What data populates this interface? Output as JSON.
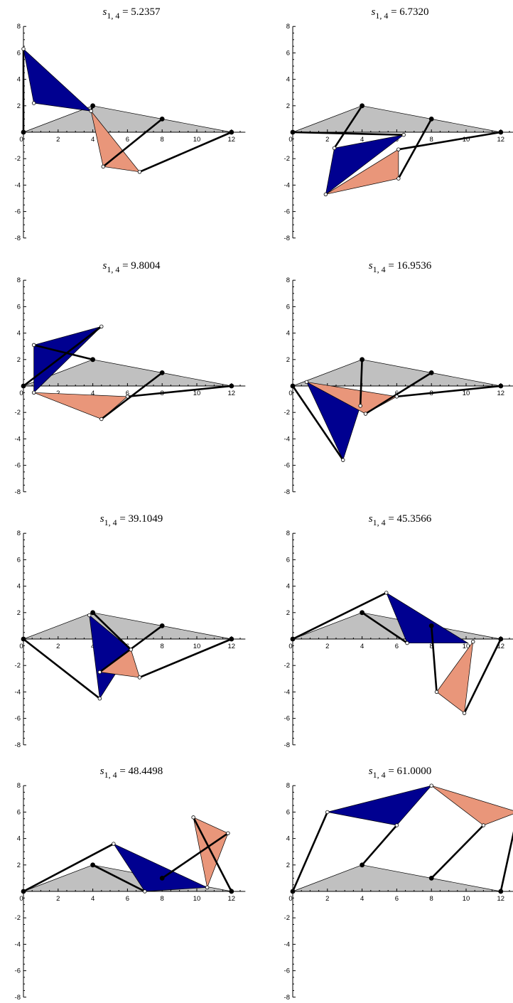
{
  "figure": {
    "title_symbol": "s",
    "title_subscript": "1, 4",
    "x_axis_ticks": [
      "0",
      "2",
      "4",
      "6",
      "8",
      "10",
      "12"
    ],
    "y_axis_ticks": [
      "8",
      "6",
      "4",
      "2",
      "-2",
      "-4",
      "-6",
      "-8"
    ],
    "xlim": [
      0,
      12
    ],
    "ylim": [
      -8,
      8
    ],
    "colors": {
      "ground": "#c0c0c0",
      "blue_triangle": "#000090",
      "salmon_triangle": "#e9967a",
      "bars": "#000000"
    },
    "panels": [
      {
        "value": "5.2357",
        "ground": [
          [
            0,
            0
          ],
          [
            4,
            2
          ],
          [
            12,
            0
          ]
        ],
        "blue": [
          [
            0,
            6.3
          ],
          [
            0.6,
            2.2
          ],
          [
            3.9,
            1.6
          ]
        ],
        "salmon": [
          [
            3.9,
            1.6
          ],
          [
            4.6,
            -2.6
          ],
          [
            6.7,
            -3.0
          ]
        ],
        "bars": [
          [
            [
              0,
              0
            ],
            [
              0,
              6.3
            ]
          ],
          [
            [
              4,
              2
            ],
            [
              3.9,
              1.6
            ]
          ],
          [
            [
              8,
              1
            ],
            [
              4.6,
              -2.6
            ]
          ],
          [
            [
              12,
              0
            ],
            [
              6.7,
              -3.0
            ]
          ]
        ],
        "pivots": [
          [
            0,
            0
          ],
          [
            4,
            2
          ],
          [
            8,
            1
          ],
          [
            12,
            0
          ]
        ],
        "joints": [
          [
            0,
            6.3
          ],
          [
            0.6,
            2.2
          ],
          [
            3.9,
            1.6
          ],
          [
            4.6,
            -2.6
          ],
          [
            6.7,
            -3.0
          ]
        ]
      },
      {
        "value": "6.7320",
        "ground": [
          [
            0,
            0
          ],
          [
            4,
            2
          ],
          [
            12,
            0
          ]
        ],
        "blue": [
          [
            2.4,
            -1.2
          ],
          [
            1.9,
            -4.7
          ],
          [
            6.4,
            -0.2
          ]
        ],
        "salmon": [
          [
            1.9,
            -4.7
          ],
          [
            6.1,
            -3.5
          ],
          [
            6.1,
            -1.3
          ]
        ],
        "bars": [
          [
            [
              0,
              0
            ],
            [
              6.4,
              -0.2
            ]
          ],
          [
            [
              4,
              2
            ],
            [
              2.4,
              -1.2
            ]
          ],
          [
            [
              8,
              1
            ],
            [
              6.1,
              -3.5
            ]
          ],
          [
            [
              12,
              0
            ],
            [
              6.1,
              -1.3
            ]
          ]
        ],
        "pivots": [
          [
            0,
            0
          ],
          [
            4,
            2
          ],
          [
            8,
            1
          ],
          [
            12,
            0
          ]
        ],
        "joints": [
          [
            2.4,
            -1.2
          ],
          [
            1.9,
            -4.7
          ],
          [
            6.4,
            -0.2
          ],
          [
            6.1,
            -3.5
          ],
          [
            6.1,
            -1.3
          ]
        ]
      },
      {
        "value": "9.8004",
        "ground": [
          [
            0,
            0
          ],
          [
            4,
            2
          ],
          [
            12,
            0
          ]
        ],
        "blue": [
          [
            0.6,
            3.1
          ],
          [
            0.6,
            -0.5
          ],
          [
            4.5,
            4.5
          ]
        ],
        "salmon": [
          [
            0.6,
            -0.5
          ],
          [
            4.5,
            -2.5
          ],
          [
            6.0,
            -0.8
          ]
        ],
        "bars": [
          [
            [
              0,
              0
            ],
            [
              4.5,
              4.5
            ]
          ],
          [
            [
              4,
              2
            ],
            [
              0.6,
              3.1
            ]
          ],
          [
            [
              8,
              1
            ],
            [
              4.5,
              -2.5
            ]
          ],
          [
            [
              12,
              0
            ],
            [
              6.0,
              -0.8
            ]
          ]
        ],
        "pivots": [
          [
            0,
            0
          ],
          [
            4,
            2
          ],
          [
            8,
            1
          ],
          [
            12,
            0
          ]
        ],
        "joints": [
          [
            0.6,
            3.1
          ],
          [
            0.6,
            -0.5
          ],
          [
            4.5,
            4.5
          ],
          [
            4.5,
            -2.5
          ],
          [
            6.0,
            -0.8
          ]
        ]
      },
      {
        "value": "16.9536",
        "ground": [
          [
            0,
            0
          ],
          [
            4,
            2
          ],
          [
            12,
            0
          ]
        ],
        "blue": [
          [
            0.8,
            0.3
          ],
          [
            2.9,
            -5.6
          ],
          [
            3.9,
            -1.5
          ]
        ],
        "salmon": [
          [
            0.8,
            0.3
          ],
          [
            4.2,
            -2.1
          ],
          [
            6.0,
            -0.8
          ]
        ],
        "bars": [
          [
            [
              0,
              0
            ],
            [
              2.9,
              -5.6
            ]
          ],
          [
            [
              4,
              2
            ],
            [
              3.9,
              -1.5
            ]
          ],
          [
            [
              8,
              1
            ],
            [
              4.2,
              -2.1
            ]
          ],
          [
            [
              12,
              0
            ],
            [
              6.0,
              -0.8
            ]
          ]
        ],
        "pivots": [
          [
            0,
            0
          ],
          [
            4,
            2
          ],
          [
            8,
            1
          ],
          [
            12,
            0
          ]
        ],
        "joints": [
          [
            0.8,
            0.3
          ],
          [
            2.9,
            -5.6
          ],
          [
            3.9,
            -1.5
          ],
          [
            4.2,
            -2.1
          ],
          [
            6.0,
            -0.8
          ]
        ]
      },
      {
        "value": "39.1049",
        "ground": [
          [
            0,
            0
          ],
          [
            4,
            2
          ],
          [
            12,
            0
          ]
        ],
        "blue": [
          [
            3.8,
            1.8
          ],
          [
            4.4,
            -4.5
          ],
          [
            6.2,
            -0.8
          ]
        ],
        "salmon": [
          [
            4.4,
            -2.5
          ],
          [
            6.7,
            -2.9
          ],
          [
            6.2,
            -0.8
          ]
        ],
        "bars": [
          [
            [
              0,
              0
            ],
            [
              4.4,
              -4.5
            ]
          ],
          [
            [
              4,
              2
            ],
            [
              6.2,
              -0.8
            ]
          ],
          [
            [
              8,
              1
            ],
            [
              4.4,
              -2.5
            ]
          ],
          [
            [
              12,
              0
            ],
            [
              6.7,
              -2.9
            ]
          ]
        ],
        "pivots": [
          [
            0,
            0
          ],
          [
            4,
            2
          ],
          [
            8,
            1
          ],
          [
            12,
            0
          ]
        ],
        "joints": [
          [
            3.8,
            1.8
          ],
          [
            4.4,
            -4.5
          ],
          [
            6.2,
            -0.8
          ],
          [
            4.4,
            -2.5
          ],
          [
            6.7,
            -2.9
          ]
        ]
      },
      {
        "value": "45.3566",
        "ground": [
          [
            0,
            0
          ],
          [
            4,
            2
          ],
          [
            12,
            0
          ]
        ],
        "blue": [
          [
            5.4,
            3.5
          ],
          [
            6.6,
            -0.3
          ],
          [
            10.1,
            -0.3
          ]
        ],
        "salmon": [
          [
            10.4,
            -0.2
          ],
          [
            8.3,
            -4.0
          ],
          [
            9.9,
            -5.6
          ]
        ],
        "bars": [
          [
            [
              0,
              0
            ],
            [
              5.4,
              3.5
            ]
          ],
          [
            [
              4,
              2
            ],
            [
              6.6,
              -0.3
            ]
          ],
          [
            [
              8,
              1
            ],
            [
              8.3,
              -4.0
            ]
          ],
          [
            [
              12,
              0
            ],
            [
              9.9,
              -5.6
            ]
          ]
        ],
        "pivots": [
          [
            0,
            0
          ],
          [
            4,
            2
          ],
          [
            8,
            1
          ],
          [
            12,
            0
          ]
        ],
        "joints": [
          [
            5.4,
            3.5
          ],
          [
            6.6,
            -0.3
          ],
          [
            10.4,
            -0.2
          ],
          [
            8.3,
            -4.0
          ],
          [
            9.9,
            -5.6
          ]
        ]
      },
      {
        "value": "48.4498",
        "ground": [
          [
            0,
            0
          ],
          [
            4,
            2
          ],
          [
            12,
            0
          ]
        ],
        "blue": [
          [
            5.2,
            3.6
          ],
          [
            7.0,
            0
          ],
          [
            10.6,
            0.3
          ]
        ],
        "salmon": [
          [
            9.8,
            5.6
          ],
          [
            11.8,
            4.4
          ],
          [
            10.6,
            0.3
          ]
        ],
        "bars": [
          [
            [
              0,
              0
            ],
            [
              5.2,
              3.6
            ]
          ],
          [
            [
              4,
              2
            ],
            [
              7.0,
              0
            ]
          ],
          [
            [
              8,
              1
            ],
            [
              11.8,
              4.4
            ]
          ],
          [
            [
              12,
              0
            ],
            [
              9.8,
              5.6
            ]
          ]
        ],
        "pivots": [
          [
            0,
            0
          ],
          [
            4,
            2
          ],
          [
            8,
            1
          ],
          [
            12,
            0
          ]
        ],
        "joints": [
          [
            5.2,
            3.6
          ],
          [
            7.0,
            0
          ],
          [
            10.6,
            0.3
          ],
          [
            9.8,
            5.6
          ],
          [
            11.8,
            4.4
          ]
        ]
      },
      {
        "value": "61.0000",
        "ground": [
          [
            0,
            0
          ],
          [
            4,
            2
          ],
          [
            12,
            0
          ]
        ],
        "blue": [
          [
            2,
            6
          ],
          [
            6,
            5
          ],
          [
            8,
            8
          ]
        ],
        "salmon": [
          [
            8,
            8
          ],
          [
            11,
            5
          ],
          [
            13,
            6
          ]
        ],
        "bars": [
          [
            [
              0,
              0
            ],
            [
              2,
              6
            ]
          ],
          [
            [
              4,
              2
            ],
            [
              6,
              5
            ]
          ],
          [
            [
              8,
              1
            ],
            [
              11,
              5
            ]
          ],
          [
            [
              12,
              0
            ],
            [
              13,
              6
            ]
          ]
        ],
        "pivots": [
          [
            0,
            0
          ],
          [
            4,
            2
          ],
          [
            8,
            1
          ],
          [
            12,
            0
          ]
        ],
        "joints": [
          [
            2,
            6
          ],
          [
            6,
            5
          ],
          [
            8,
            8
          ],
          [
            11,
            5
          ],
          [
            13,
            6
          ]
        ]
      }
    ]
  }
}
